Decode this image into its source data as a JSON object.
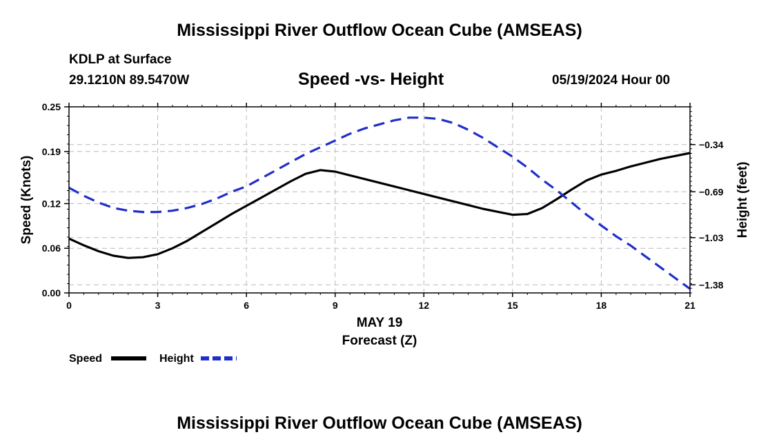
{
  "header": {
    "title": "Mississippi River Outflow Ocean Cube (AMSEAS)",
    "station": "KDLP at Surface",
    "coords": "29.1210N  89.5470W",
    "datetime": "05/19/2024 Hour 00",
    "footer_title": "Mississippi River Outflow Ocean Cube (AMSEAS)"
  },
  "chart_data": {
    "type": "line",
    "title": "Speed -vs- Height",
    "xlabel_date": "MAY 19",
    "xlabel": "Forecast (Z)",
    "ylabel": "Speed (Knots)",
    "ylabel_right": "Height (feet)",
    "xlim": [
      0,
      21
    ],
    "ylim": [
      0,
      0.25
    ],
    "ylim_right": [
      -1.44,
      -0.06
    ],
    "x_ticks": [
      "0",
      "3",
      "6",
      "9",
      "12",
      "15",
      "18",
      "21"
    ],
    "y_ticks": [
      "0.00",
      "0.06",
      "0.12",
      "0.19",
      "0.25"
    ],
    "y_tick_values": [
      0,
      0.06,
      0.12,
      0.19,
      0.25
    ],
    "y_right_ticks": [
      "-1.38",
      "-1.03",
      "-0.69",
      "-0.34"
    ],
    "y_right_tick_values": [
      -1.38,
      -1.03,
      -0.69,
      -0.34
    ],
    "grid": true,
    "series": [
      {
        "name": "Speed",
        "axis": "left",
        "color": "#000000",
        "style": "solid",
        "x": [
          0,
          0.5,
          1,
          1.5,
          2,
          2.5,
          3,
          3.5,
          4,
          4.5,
          5,
          5.5,
          6,
          6.5,
          7,
          7.5,
          8,
          8.5,
          9,
          9.5,
          10,
          10.5,
          11,
          11.5,
          12,
          12.5,
          13,
          13.5,
          14,
          14.5,
          15,
          15.5,
          16,
          16.5,
          17,
          17.5,
          18,
          18.5,
          19,
          19.5,
          20,
          20.5,
          21
        ],
        "values": [
          0.073,
          0.064,
          0.056,
          0.05,
          0.047,
          0.048,
          0.052,
          0.06,
          0.07,
          0.082,
          0.094,
          0.106,
          0.117,
          0.128,
          0.139,
          0.15,
          0.16,
          0.165,
          0.163,
          0.158,
          0.153,
          0.148,
          0.143,
          0.138,
          0.133,
          0.128,
          0.123,
          0.118,
          0.113,
          0.109,
          0.105,
          0.106,
          0.114,
          0.126,
          0.139,
          0.151,
          0.159,
          0.164,
          0.17,
          0.175,
          0.18,
          0.184,
          0.188
        ]
      },
      {
        "name": "Height",
        "axis": "right",
        "color": "#1f2ec8",
        "style": "dashed",
        "x": [
          0,
          0.5,
          1,
          1.5,
          2,
          2.5,
          3,
          3.5,
          4,
          4.5,
          5,
          5.5,
          6,
          6.5,
          7,
          7.5,
          8,
          8.5,
          9,
          9.5,
          10,
          10.5,
          11,
          11.5,
          12,
          12.5,
          13,
          13.5,
          14,
          14.5,
          15,
          15.5,
          16,
          16.5,
          17,
          17.5,
          18,
          18.5,
          19,
          19.5,
          20,
          20.5,
          21
        ],
        "values": [
          -0.66,
          -0.72,
          -0.77,
          -0.81,
          -0.83,
          -0.84,
          -0.84,
          -0.83,
          -0.81,
          -0.78,
          -0.74,
          -0.69,
          -0.65,
          -0.59,
          -0.53,
          -0.47,
          -0.41,
          -0.36,
          -0.31,
          -0.26,
          -0.22,
          -0.19,
          -0.16,
          -0.14,
          -0.14,
          -0.15,
          -0.18,
          -0.23,
          -0.29,
          -0.36,
          -0.43,
          -0.51,
          -0.6,
          -0.68,
          -0.77,
          -0.86,
          -0.94,
          -1.02,
          -1.09,
          -1.17,
          -1.25,
          -1.33,
          -1.41
        ]
      }
    ],
    "legend": [
      {
        "label": "Speed",
        "color": "#000000",
        "style": "solid"
      },
      {
        "label": "Height",
        "color": "#1f2ec8",
        "style": "dashed"
      }
    ]
  }
}
